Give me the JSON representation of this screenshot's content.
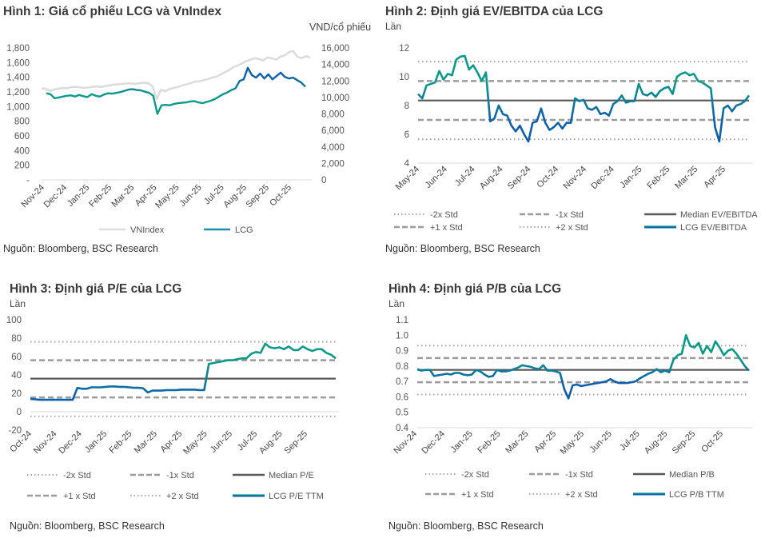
{
  "colors": {
    "teal": "#0a9a8a",
    "blue": "#0d5fae",
    "vnindex": "#dcdcdc",
    "median": "#595959",
    "std": "#9b9b9b",
    "axis": "#e6e6e6"
  },
  "chart_data": [
    {
      "id": "fig1",
      "type": "line",
      "title": "Hình 1: Giá cổ phiếu LCG và VnIndex",
      "ylabel_right": "VND/cổ phiếu",
      "source": "Nguồn: Bloomberg, BSC Research",
      "ylim_left": [
        0,
        1800
      ],
      "yticks_left": [
        "-",
        "200",
        "400",
        "600",
        "800",
        "1,000",
        "1,200",
        "1,400",
        "1,600",
        "1,800"
      ],
      "ylim_right": [
        0,
        16000
      ],
      "yticks_right": [
        "0",
        "2,000",
        "4,000",
        "6,000",
        "8,000",
        "10,000",
        "12,000",
        "14,000",
        "16,000"
      ],
      "categories": [
        "Nov-24",
        "Dec-24",
        "Jan-25",
        "Feb-25",
        "Mar-25",
        "Apr-25",
        "May-25",
        "Jun-25",
        "Jul-25",
        "Aug-25",
        "Sep-25",
        "Oct-25"
      ],
      "legend": [
        "VNIndex",
        "LCG"
      ],
      "series": [
        {
          "name": "VNIndex",
          "axis": "left",
          "values": [
            1250,
            1240,
            1215,
            1235,
            1245,
            1255,
            1250,
            1265,
            1270,
            1262,
            1255,
            1260,
            1270,
            1275,
            1268,
            1282,
            1290,
            1300,
            1305,
            1310,
            1315,
            1318,
            1310,
            1320,
            1325,
            1318,
            1280,
            1100,
            1230,
            1210,
            1240,
            1255,
            1270,
            1290,
            1305,
            1320,
            1340,
            1345,
            1360,
            1375,
            1395,
            1410,
            1440,
            1470,
            1500,
            1540,
            1560,
            1590,
            1620,
            1640,
            1660,
            1650,
            1630,
            1670,
            1660,
            1640,
            1680,
            1700,
            1740,
            1760,
            1680,
            1660,
            1690,
            1670
          ]
        },
        {
          "name": "LCG",
          "axis": "right",
          "values": [
            10500,
            10400,
            9900,
            10000,
            10100,
            10200,
            10250,
            10100,
            10300,
            10150,
            10050,
            10400,
            10200,
            10100,
            10350,
            10500,
            10450,
            10550,
            10650,
            10800,
            10950,
            11000,
            10900,
            10850,
            10700,
            10550,
            10200,
            8000,
            9050,
            9100,
            9050,
            9200,
            9300,
            9350,
            9400,
            9500,
            9550,
            9400,
            9300,
            9450,
            9600,
            9800,
            10100,
            10400,
            10600,
            10900,
            11100,
            12000,
            12200,
            13600,
            12700,
            12400,
            12900,
            12300,
            12800,
            12200,
            12600,
            13000,
            12500,
            12300,
            12400,
            12100,
            11800,
            11300
          ]
        }
      ]
    },
    {
      "id": "fig2",
      "type": "line",
      "title": "Hình 2: Định giá EV/EBITDA của LCG",
      "ylabel": "Lần",
      "source": "Nguồn: Bloomberg, BSC Research",
      "ylim": [
        4,
        12
      ],
      "yticks": [
        "4",
        "6",
        "8",
        "10",
        "12"
      ],
      "categories": [
        "May-24",
        "Jun-24",
        "Jul-24",
        "Aug-24",
        "Sep-24",
        "Oct-24",
        "Nov-24",
        "Dec-24",
        "Jan-25",
        "Feb-25",
        "Mar-25",
        "Apr-25"
      ],
      "bands": {
        "minus2": 5.65,
        "minus1": 7.0,
        "median": 8.35,
        "plus1": 9.7,
        "plus2": 11.05
      },
      "legend": [
        "-2x Std",
        "-1x Std",
        "Median EV/EBITDA",
        "+1 x Std",
        "+2 x Std",
        "LCG EV/EBITDA"
      ],
      "series": [
        {
          "name": "LCG EV/EBITDA",
          "values": [
            8.8,
            8.5,
            9.4,
            9.5,
            9.6,
            10.4,
            9.8,
            10.2,
            10.1,
            11.2,
            11.4,
            11.45,
            10.5,
            10.8,
            10.3,
            9.7,
            10.3,
            6.9,
            7.1,
            8.0,
            7.4,
            7.3,
            6.6,
            6.2,
            6.6,
            6.0,
            5.5,
            6.8,
            6.9,
            7.8,
            6.8,
            6.3,
            6.5,
            6.8,
            6.4,
            6.8,
            6.8,
            8.5,
            8.3,
            8.4,
            7.8,
            7.7,
            7.9,
            7.4,
            7.5,
            7.3,
            8.1,
            8.3,
            8.7,
            8.2,
            8.3,
            8.3,
            9.5,
            8.8,
            8.7,
            8.9,
            8.6,
            9.0,
            9.2,
            9.3,
            8.8,
            10.0,
            10.2,
            10.3,
            10.1,
            10.2,
            9.7,
            9.6,
            9.4,
            9.2,
            6.5,
            5.5,
            7.8,
            8.0,
            7.6,
            8.0,
            8.1,
            8.3,
            8.7
          ]
        }
      ]
    },
    {
      "id": "fig3",
      "type": "line",
      "title": "Hình 3: Định giá P/E của LCG",
      "ylabel": "Lần",
      "source": "Nguồn: Bloomberg, BSC Research",
      "ylim": [
        -20,
        100
      ],
      "yticks": [
        "-20",
        "0",
        "20",
        "40",
        "60",
        "80",
        "100"
      ],
      "categories": [
        "Oct-24",
        "Nov-24",
        "Dec-24",
        "Jan-25",
        "Feb-25",
        "Mar-25",
        "Apr-25",
        "May-25",
        "Jun-25",
        "Jul-25",
        "Aug-25",
        "Sep-25"
      ],
      "bands": {
        "minus2": -5,
        "minus1": 15.5,
        "median": 36,
        "plus1": 56,
        "plus2": 76
      },
      "legend": [
        "-2x Std",
        "-1x Std",
        "Median P/E",
        "+1 x Std",
        "+2 x Std",
        "LCG P/E TTM"
      ],
      "series": [
        {
          "name": "LCG P/E TTM",
          "values": [
            14,
            13.5,
            13,
            13,
            13,
            13,
            13,
            13,
            13,
            13,
            26,
            25,
            25,
            26.5,
            26.5,
            26.5,
            27,
            27.5,
            27.5,
            27,
            27,
            26.5,
            26,
            26,
            25.5,
            21,
            23,
            23,
            23,
            23.5,
            23.5,
            23.5,
            24,
            24,
            24,
            24,
            23.5,
            23.5,
            52,
            53,
            54,
            55,
            56,
            56,
            57,
            58,
            58,
            63,
            65,
            64,
            74,
            70,
            69,
            70,
            68,
            71,
            67,
            67,
            71,
            68,
            66,
            68,
            68,
            64,
            62,
            58
          ]
        }
      ]
    },
    {
      "id": "fig4",
      "type": "line",
      "title": "Hình 4: Định giá P/B của LCG",
      "ylabel": "Lần",
      "source": "Nguồn: Bloomberg, BSC Research",
      "ylim": [
        0.4,
        1.1
      ],
      "yticks": [
        "0.4",
        "0.5",
        "0.6",
        "0.7",
        "0.8",
        "0.9",
        "1.0",
        "1.1"
      ],
      "categories": [
        "Nov-24",
        "Dec-24",
        "Jan-25",
        "Feb-25",
        "Mar-25",
        "Apr-25",
        "May-25",
        "Jun-25",
        "Jul-25",
        "Aug-25",
        "Sep-25",
        "Oct-25"
      ],
      "bands": {
        "minus2": 0.615,
        "minus1": 0.695,
        "median": 0.775,
        "plus1": 0.852,
        "plus2": 0.932
      },
      "legend": [
        "-2x Std",
        "-1x Std",
        "Median P/B",
        "+1 x Std",
        "+2 x Std",
        "LCG P/B TTM"
      ],
      "series": [
        {
          "name": "LCG P/B TTM",
          "values": [
            0.78,
            0.77,
            0.775,
            0.775,
            0.735,
            0.74,
            0.745,
            0.75,
            0.745,
            0.755,
            0.755,
            0.745,
            0.74,
            0.745,
            0.775,
            0.765,
            0.745,
            0.73,
            0.735,
            0.775,
            0.765,
            0.765,
            0.77,
            0.78,
            0.79,
            0.805,
            0.8,
            0.795,
            0.785,
            0.78,
            0.805,
            0.77,
            0.77,
            0.765,
            0.755,
            0.65,
            0.59,
            0.675,
            0.68,
            0.67,
            0.675,
            0.68,
            0.685,
            0.69,
            0.695,
            0.7,
            0.715,
            0.7,
            0.69,
            0.69,
            0.69,
            0.695,
            0.7,
            0.72,
            0.735,
            0.75,
            0.76,
            0.78,
            0.76,
            0.77,
            0.76,
            0.84,
            0.87,
            0.88,
            1.0,
            0.93,
            0.92,
            0.95,
            0.88,
            0.93,
            0.89,
            0.96,
            0.92,
            0.87,
            0.9,
            0.91,
            0.88,
            0.84,
            0.8,
            0.77
          ]
        }
      ]
    }
  ]
}
